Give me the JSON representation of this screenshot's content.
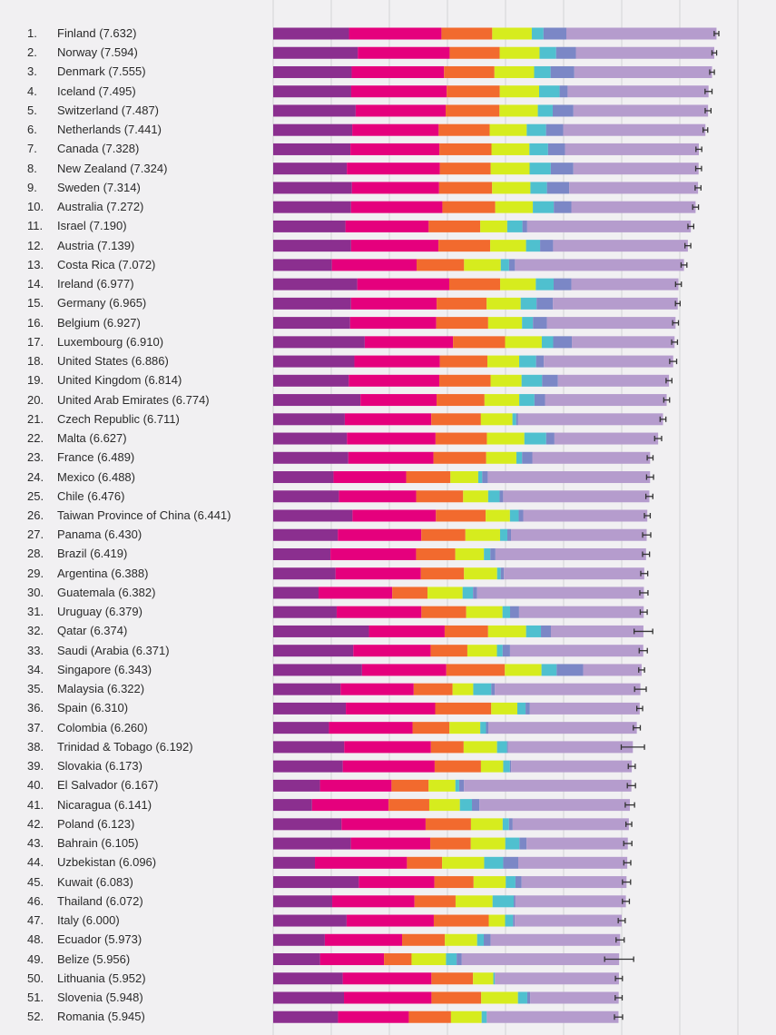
{
  "chart_data": {
    "type": "bar",
    "orientation": "horizontal",
    "stacked": true,
    "xlim": [
      0,
      8
    ],
    "grid": true,
    "segment_colors": [
      "#8b2f8f",
      "#e5007d",
      "#f26a2e",
      "#d6ec1e",
      "#4fc0cf",
      "#7b87c6",
      "#b59ccd"
    ],
    "rows": [
      {
        "rank": "1.",
        "label": "Finland (7.632)",
        "score": 7.632,
        "parts": [
          1.305,
          1.592,
          0.874,
          0.681,
          0.202,
          0.393
        ],
        "err": 0.04
      },
      {
        "rank": "2.",
        "label": "Norway (7.594)",
        "score": 7.594,
        "parts": [
          1.456,
          1.582,
          0.861,
          0.686,
          0.286,
          0.34
        ],
        "err": 0.04
      },
      {
        "rank": "3.",
        "label": "Denmark (7.555)",
        "score": 7.555,
        "parts": [
          1.351,
          1.59,
          0.868,
          0.683,
          0.284,
          0.408
        ],
        "err": 0.04
      },
      {
        "rank": "4.",
        "label": "Iceland (7.495)",
        "score": 7.495,
        "parts": [
          1.343,
          1.644,
          0.914,
          0.677,
          0.353,
          0.138
        ],
        "err": 0.06
      },
      {
        "rank": "5.",
        "label": "Switzerland (7.487)",
        "score": 7.487,
        "parts": [
          1.42,
          1.549,
          0.927,
          0.66,
          0.256,
          0.357
        ],
        "err": 0.05
      },
      {
        "rank": "6.",
        "label": "Netherlands (7.441)",
        "score": 7.441,
        "parts": [
          1.361,
          1.488,
          0.878,
          0.638,
          0.333,
          0.295
        ],
        "err": 0.04
      },
      {
        "rank": "7.",
        "label": "Canada (7.328)",
        "score": 7.328,
        "parts": [
          1.33,
          1.532,
          0.896,
          0.653,
          0.321,
          0.291
        ],
        "err": 0.05
      },
      {
        "rank": "8.",
        "label": "New Zealand (7.324)",
        "score": 7.324,
        "parts": [
          1.268,
          1.601,
          0.876,
          0.669,
          0.365,
          0.389
        ],
        "err": 0.05
      },
      {
        "rank": "9.",
        "label": "Sweden (7.314)",
        "score": 7.314,
        "parts": [
          1.355,
          1.501,
          0.913,
          0.659,
          0.285,
          0.383
        ],
        "err": 0.05
      },
      {
        "rank": "10.",
        "label": "Australia (7.272)",
        "score": 7.272,
        "parts": [
          1.34,
          1.573,
          0.91,
          0.647,
          0.361,
          0.302
        ],
        "err": 0.05
      },
      {
        "rank": "11.",
        "label": "Israel (7.190)",
        "score": 7.19,
        "parts": [
          1.244,
          1.433,
          0.888,
          0.464,
          0.262,
          0.082
        ],
        "err": 0.05
      },
      {
        "rank": "12.",
        "label": "Austria (7.139)",
        "score": 7.139,
        "parts": [
          1.341,
          1.504,
          0.891,
          0.617,
          0.242,
          0.224
        ],
        "err": 0.05
      },
      {
        "rank": "13.",
        "label": "Costa Rica (7.072)",
        "score": 7.072,
        "parts": [
          1.01,
          1.459,
          0.817,
          0.632,
          0.143,
          0.101
        ],
        "err": 0.05
      },
      {
        "rank": "14.",
        "label": "Ireland (6.977)",
        "score": 6.977,
        "parts": [
          1.448,
          1.583,
          0.876,
          0.614,
          0.307,
          0.306
        ],
        "err": 0.05
      },
      {
        "rank": "15.",
        "label": "Germany (6.965)",
        "score": 6.965,
        "parts": [
          1.34,
          1.474,
          0.861,
          0.586,
          0.273,
          0.28
        ],
        "err": 0.04
      },
      {
        "rank": "16.",
        "label": "Belgium (6.927)",
        "score": 6.927,
        "parts": [
          1.324,
          1.483,
          0.894,
          0.583,
          0.188,
          0.24
        ],
        "err": 0.05
      },
      {
        "rank": "17.",
        "label": "Luxembourg (6.910)",
        "score": 6.91,
        "parts": [
          1.576,
          1.52,
          0.896,
          0.632,
          0.196,
          0.321
        ],
        "err": 0.05
      },
      {
        "rank": "18.",
        "label": "United States (6.886)",
        "score": 6.886,
        "parts": [
          1.398,
          1.471,
          0.819,
          0.547,
          0.291,
          0.133
        ],
        "err": 0.06
      },
      {
        "rank": "19.",
        "label": "United Kingdom (6.814)",
        "score": 6.814,
        "parts": [
          1.301,
          1.559,
          0.883,
          0.533,
          0.354,
          0.272
        ],
        "err": 0.05
      },
      {
        "rank": "20.",
        "label": "United Arab Emirates (6.774)",
        "score": 6.774,
        "parts": [
          1.503,
          1.31,
          0.825,
          0.598,
          0.262,
          0.182
        ],
        "err": 0.05
      },
      {
        "rank": "21.",
        "label": "Czech Republic (6.711)",
        "score": 6.711,
        "parts": [
          1.233,
          1.489,
          0.854,
          0.543,
          0.064,
          0.034
        ],
        "err": 0.05
      },
      {
        "rank": "22.",
        "label": "Malta (6.627)",
        "score": 6.627,
        "parts": [
          1.27,
          1.525,
          0.884,
          0.645,
          0.376,
          0.142
        ],
        "err": 0.06
      },
      {
        "rank": "23.",
        "label": "France (6.489)",
        "score": 6.489,
        "parts": [
          1.293,
          1.466,
          0.908,
          0.52,
          0.098,
          0.176
        ],
        "err": 0.05
      },
      {
        "rank": "24.",
        "label": "Mexico (6.488)",
        "score": 6.488,
        "parts": [
          1.038,
          1.252,
          0.761,
          0.479,
          0.069,
          0.095
        ],
        "err": 0.06
      },
      {
        "rank": "25.",
        "label": "Chile (6.476)",
        "score": 6.476,
        "parts": [
          1.131,
          1.331,
          0.808,
          0.431,
          0.197,
          0.061
        ],
        "err": 0.06
      },
      {
        "rank": "26.",
        "label": "Taiwan Province of China (6.441)",
        "score": 6.441,
        "parts": [
          1.365,
          1.436,
          0.857,
          0.418,
          0.151,
          0.078
        ],
        "err": 0.05
      },
      {
        "rank": "27.",
        "label": "Panama (6.430)",
        "score": 6.43,
        "parts": [
          1.112,
          1.438,
          0.759,
          0.597,
          0.125,
          0.063
        ],
        "err": 0.07
      },
      {
        "rank": "28.",
        "label": "Brazil (6.419)",
        "score": 6.419,
        "parts": [
          0.986,
          1.474,
          0.675,
          0.493,
          0.11,
          0.088
        ],
        "err": 0.06
      },
      {
        "rank": "29.",
        "label": "Argentina (6.388)",
        "score": 6.388,
        "parts": [
          1.073,
          1.468,
          0.744,
          0.57,
          0.062,
          0.054
        ],
        "err": 0.06
      },
      {
        "rank": "30.",
        "label": "Guatemala (6.382)",
        "score": 6.382,
        "parts": [
          0.781,
          1.268,
          0.608,
          0.604,
          0.179,
          0.071
        ],
        "err": 0.07
      },
      {
        "rank": "31.",
        "label": "Uruguay (6.379)",
        "score": 6.379,
        "parts": [
          1.093,
          1.459,
          0.771,
          0.625,
          0.13,
          0.155
        ],
        "err": 0.06
      },
      {
        "rank": "32.",
        "label": "Qatar (6.374)",
        "score": 6.374,
        "parts": [
          1.649,
          1.303,
          0.748,
          0.654,
          0.256,
          0.171
        ],
        "err": 0.16
      },
      {
        "rank": "33.",
        "label": "Saudi (Arabia (6.371)",
        "score": 6.371,
        "parts": [
          1.379,
          1.331,
          0.633,
          0.509,
          0.098,
          0.127
        ],
        "err": 0.07
      },
      {
        "rank": "34.",
        "label": "Singapore (6.343)",
        "score": 6.343,
        "parts": [
          1.529,
          1.451,
          1.008,
          0.631,
          0.261,
          0.457
        ],
        "err": 0.05
      },
      {
        "rank": "35.",
        "label": "Malaysia (6.322)",
        "score": 6.322,
        "parts": [
          1.161,
          1.258,
          0.669,
          0.356,
          0.311,
          0.059
        ],
        "err": 0.1
      },
      {
        "rank": "36.",
        "label": "Spain (6.310)",
        "score": 6.31,
        "parts": [
          1.251,
          1.538,
          0.965,
          0.449,
          0.142,
          0.074
        ],
        "err": 0.05
      },
      {
        "rank": "37.",
        "label": "Colombia (6.260)",
        "score": 6.26,
        "parts": [
          0.96,
          1.439,
          0.635,
          0.531,
          0.099,
          0.039
        ],
        "err": 0.06
      },
      {
        "rank": "38.",
        "label": "Trinidad & Tobago (6.192)",
        "score": 6.192,
        "parts": [
          1.223,
          1.492,
          0.564,
          0.575,
          0.171,
          0.019
        ],
        "err": 0.2
      },
      {
        "rank": "39.",
        "label": "Slovakia (6.173)",
        "score": 6.173,
        "parts": [
          1.198,
          1.582,
          0.797,
          0.383,
          0.116,
          0.021
        ],
        "err": 0.06
      },
      {
        "rank": "40.",
        "label": "El Salvador (6.167)",
        "score": 6.167,
        "parts": [
          0.806,
          1.231,
          0.639,
          0.461,
          0.065,
          0.082
        ],
        "err": 0.07
      },
      {
        "rank": "41.",
        "label": "Nicaragua (6.141)",
        "score": 6.141,
        "parts": [
          0.668,
          1.319,
          0.7,
          0.527,
          0.208,
          0.128
        ],
        "err": 0.08
      },
      {
        "rank": "42.",
        "label": "Poland (6.123)",
        "score": 6.123,
        "parts": [
          1.176,
          1.448,
          0.781,
          0.546,
          0.108,
          0.064
        ],
        "err": 0.05
      },
      {
        "rank": "43.",
        "label": "Bahrain (6.105)",
        "score": 6.105,
        "parts": [
          1.338,
          1.366,
          0.698,
          0.594,
          0.243,
          0.123
        ],
        "err": 0.07
      },
      {
        "rank": "44.",
        "label": "Uzbekistan (6.096)",
        "score": 6.096,
        "parts": [
          0.719,
          1.584,
          0.605,
          0.724,
          0.328,
          0.259
        ],
        "err": 0.06
      },
      {
        "rank": "45.",
        "label": "Kuwait (6.083)",
        "score": 6.083,
        "parts": [
          1.474,
          1.301,
          0.675,
          0.554,
          0.167,
          0.106
        ],
        "err": 0.07
      },
      {
        "rank": "46.",
        "label": "Thailand (6.072)",
        "score": 6.072,
        "parts": [
          1.016,
          1.417,
          0.707,
          0.637,
          0.364,
          0.029
        ],
        "err": 0.06
      },
      {
        "rank": "47.",
        "label": "Italy (6.000)",
        "score": 6.0,
        "parts": [
          1.264,
          1.501,
          0.946,
          0.281,
          0.137,
          0.028
        ],
        "err": 0.06
      },
      {
        "rank": "48.",
        "label": "Ecuador (5.973)",
        "score": 5.973,
        "parts": [
          0.889,
          1.33,
          0.736,
          0.556,
          0.114,
          0.12
        ],
        "err": 0.07
      },
      {
        "rank": "49.",
        "label": "Belize (5.956)",
        "score": 5.956,
        "parts": [
          0.807,
          1.101,
          0.474,
          0.593,
          0.183,
          0.089
        ],
        "err": 0.25
      },
      {
        "rank": "50.",
        "label": "Lithuania (5.952)",
        "score": 5.952,
        "parts": [
          1.197,
          1.527,
          0.716,
          0.35,
          0.026,
          0.006
        ],
        "err": 0.06
      },
      {
        "rank": "51.",
        "label": "Slovenia (5.948)",
        "score": 5.948,
        "parts": [
          1.219,
          1.506,
          0.856,
          0.633,
          0.16,
          0.051
        ],
        "err": 0.06
      },
      {
        "rank": "52.",
        "label": "Romania (5.945)",
        "score": 5.945,
        "parts": [
          1.116,
          1.219,
          0.726,
          0.528,
          0.088,
          0.001
        ],
        "err": 0.07
      }
    ]
  }
}
